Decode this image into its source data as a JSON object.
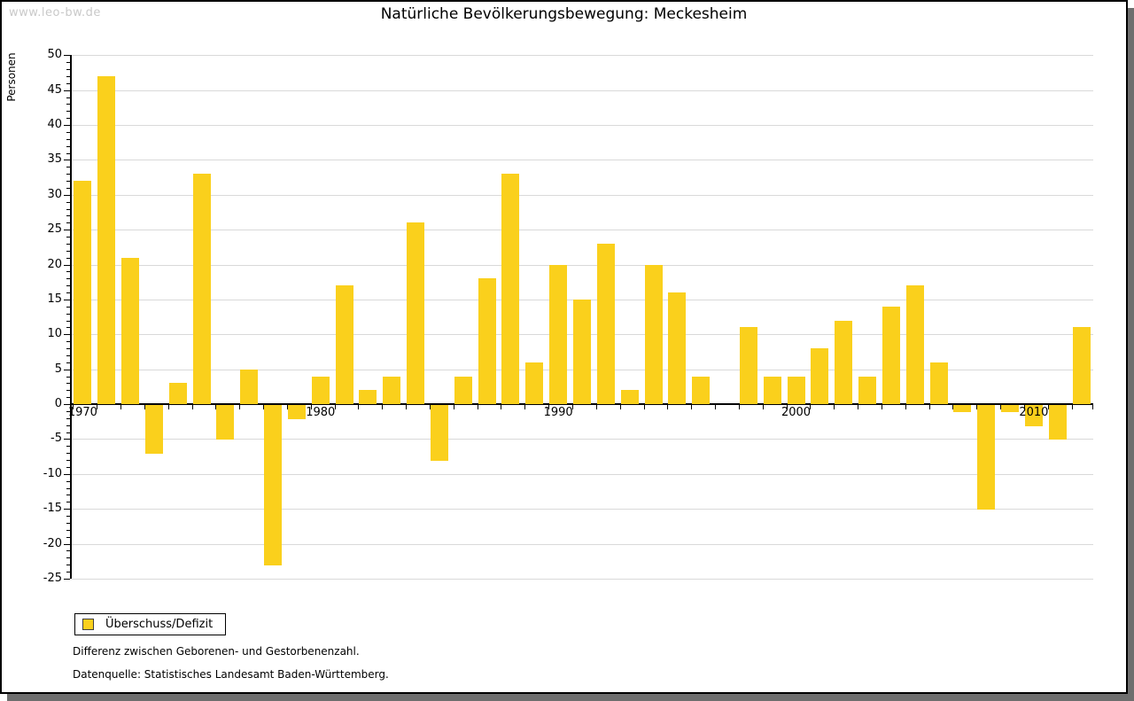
{
  "window": {
    "watermark": "www.leo-bw.de"
  },
  "chart_data": {
    "type": "bar",
    "title": "Natürliche Bevölkerungsbewegung: Meckesheim",
    "ylabel": "Personen",
    "xlabel": "",
    "categories": [
      1970,
      1971,
      1972,
      1973,
      1974,
      1975,
      1976,
      1977,
      1978,
      1979,
      1980,
      1981,
      1982,
      1983,
      1984,
      1985,
      1986,
      1987,
      1988,
      1989,
      1990,
      1991,
      1992,
      1993,
      1994,
      1995,
      1996,
      1997,
      1998,
      1999,
      2000,
      2001,
      2002,
      2003,
      2004,
      2005,
      2006,
      2007,
      2008,
      2009,
      2010,
      2011,
      2012
    ],
    "values": [
      32,
      47,
      21,
      -7,
      3,
      33,
      -5,
      5,
      -23,
      -2,
      4,
      17,
      2,
      4,
      26,
      -8,
      4,
      18,
      33,
      6,
      20,
      15,
      23,
      2,
      20,
      16,
      4,
      0,
      11,
      4,
      4,
      8,
      12,
      4,
      14,
      17,
      6,
      -1,
      -15,
      -1,
      -3,
      -5,
      11
    ],
    "ylim": [
      -25,
      50
    ],
    "ytick_step": 5,
    "ytick_minor_step": 1,
    "xtick_labels": [
      "1970",
      "1980",
      "1990",
      "2000",
      "2010"
    ],
    "grid": true,
    "legend": {
      "label": "Überschuss/Defizit",
      "position": "bottom-left"
    }
  },
  "footnotes": {
    "line1": "Differenz zwischen Geborenen- und Gestorbenenzahl.",
    "line2": "Datenquelle: Statistisches Landesamt Baden-Württemberg."
  },
  "colors": {
    "bar": "#fad01c",
    "grid": "#d9d9d9",
    "axis": "#000000",
    "watermark": "#c9c9c9",
    "shadow": "#6e6e6e"
  }
}
